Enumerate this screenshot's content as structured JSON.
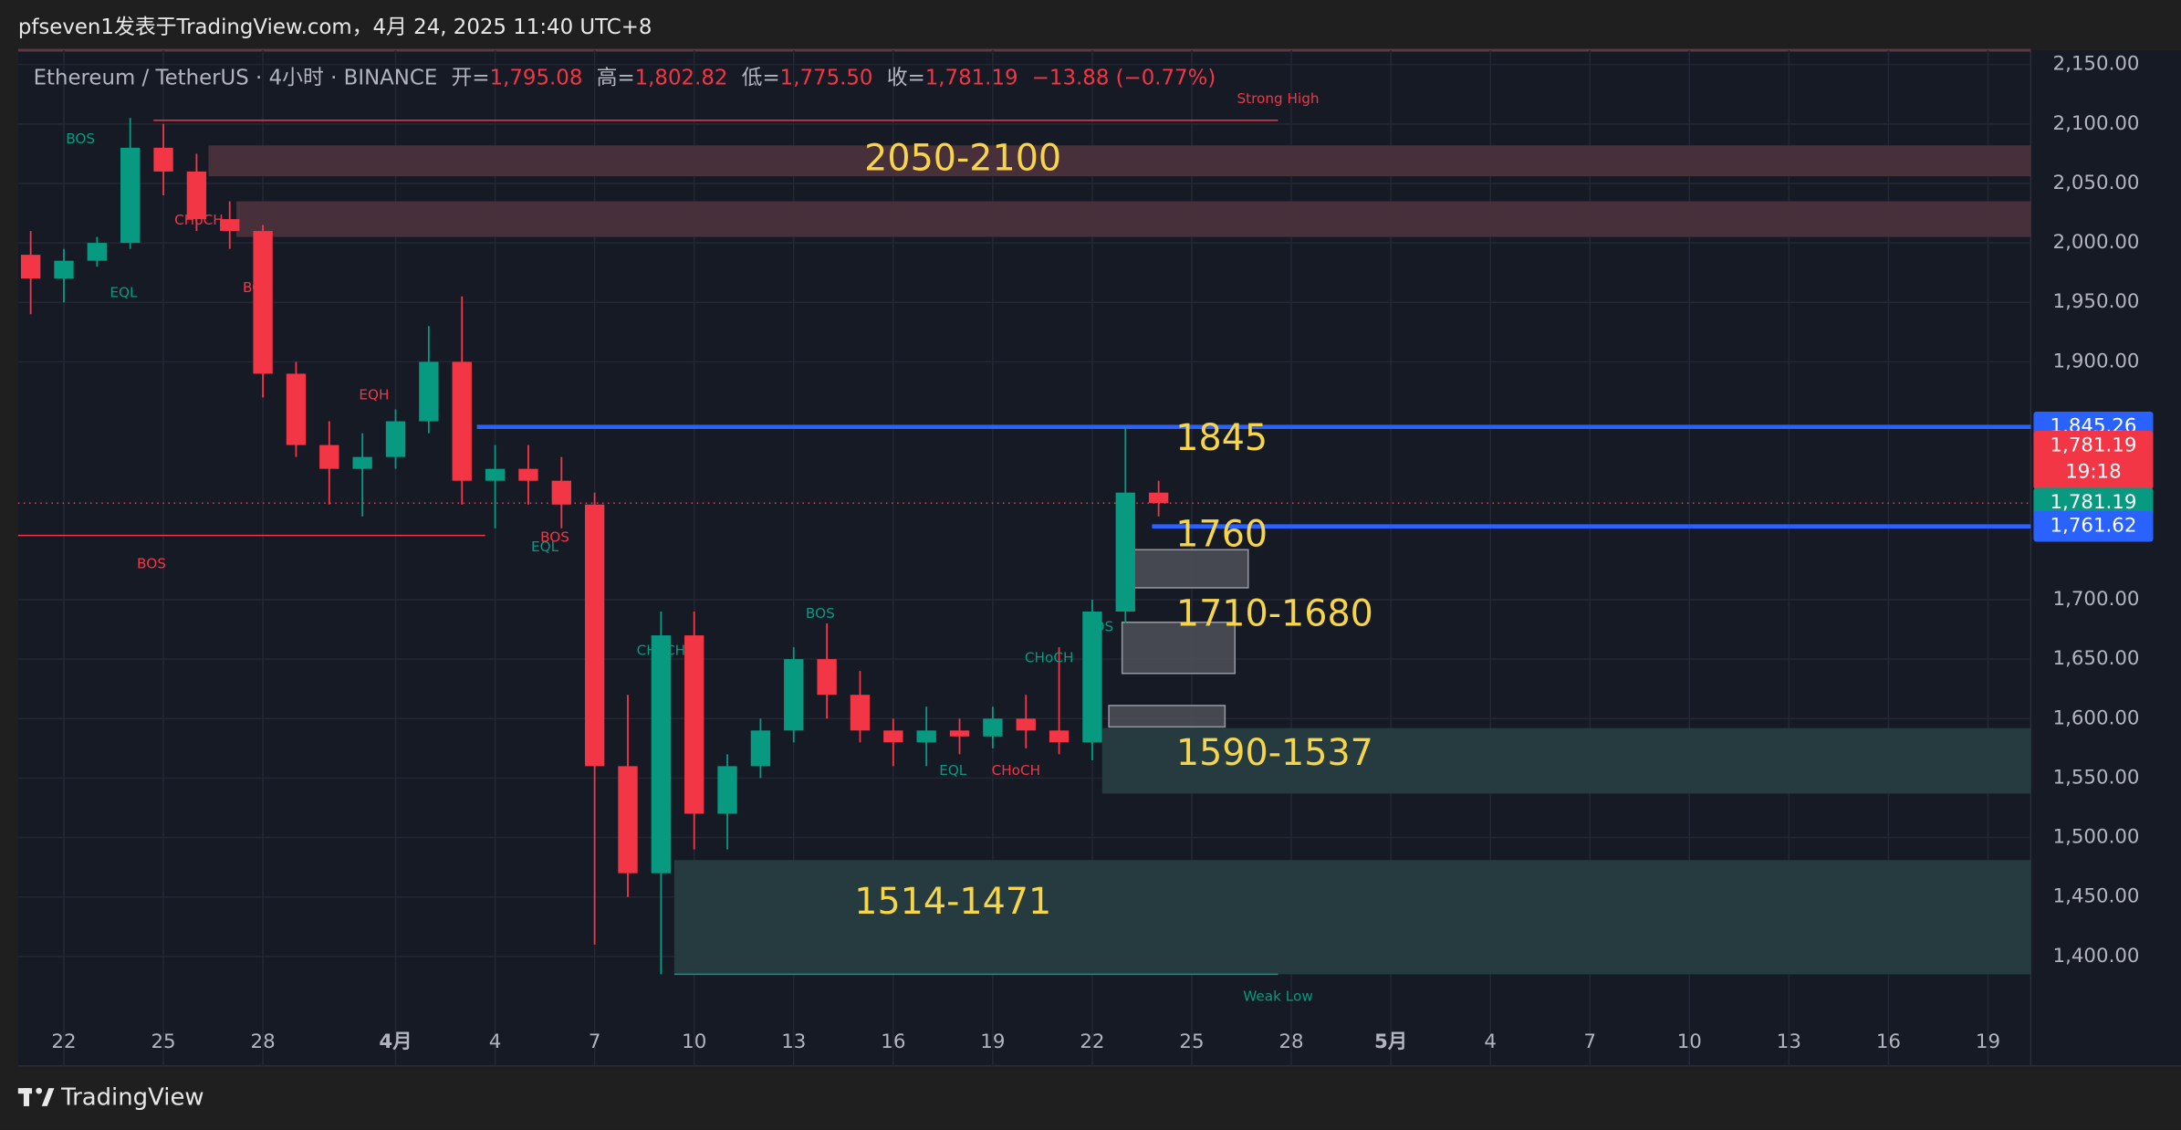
{
  "header": {
    "title": "pfseven1发表于TradingView.com，4月 24, 2025 11:40 UTC+8",
    "brand": "TradingView"
  },
  "chart_data": {
    "type": "candlestick",
    "legend": {
      "symbol": "Ethereum / TetherUS · 4小时 · BINANCE",
      "open_label": "开=",
      "open": "1,795.08",
      "high_label": "高=",
      "high": "1,802.82",
      "low_label": "低=",
      "low": "1,775.50",
      "close_label": "收=",
      "close": "1,781.19",
      "change": "−13.88 (−0.77%)"
    },
    "up_color": "#089981",
    "down_color": "#f23645",
    "x": [
      -1,
      0,
      1,
      2,
      3,
      4,
      5,
      6,
      7,
      8,
      9,
      10,
      11,
      12,
      13,
      14,
      15,
      16,
      17,
      18,
      19,
      20,
      21,
      22,
      23,
      24,
      25,
      26,
      27,
      28,
      29,
      30,
      31,
      32,
      33
    ],
    "open": [
      1990,
      1970,
      1985,
      2000,
      2080,
      2060,
      2020,
      2010,
      1890,
      1830,
      1810,
      1820,
      1850,
      1900,
      1800,
      1810,
      1800,
      1780,
      1560,
      1470,
      1670,
      1520,
      1560,
      1590,
      1650,
      1620,
      1590,
      1580,
      1590,
      1585,
      1600,
      1590,
      1580,
      1690,
      1790
    ],
    "high": [
      2010,
      1995,
      2005,
      2105,
      2100,
      2075,
      2035,
      2015,
      1900,
      1850,
      1840,
      1860,
      1930,
      1955,
      1830,
      1830,
      1820,
      1790,
      1620,
      1690,
      1690,
      1570,
      1600,
      1660,
      1680,
      1640,
      1600,
      1610,
      1600,
      1610,
      1620,
      1660,
      1700,
      1845,
      1800
    ],
    "low": [
      1940,
      1950,
      1980,
      1995,
      2040,
      2010,
      1995,
      1870,
      1820,
      1780,
      1770,
      1810,
      1840,
      1780,
      1760,
      1780,
      1760,
      1410,
      1450,
      1385,
      1490,
      1490,
      1550,
      1580,
      1600,
      1580,
      1560,
      1560,
      1570,
      1575,
      1575,
      1570,
      1565,
      1680,
      1770
    ],
    "close": [
      1970,
      1985,
      2000,
      2080,
      2060,
      2020,
      2010,
      1890,
      1830,
      1810,
      1820,
      1850,
      1900,
      1800,
      1810,
      1800,
      1780,
      1560,
      1470,
      1670,
      1520,
      1560,
      1590,
      1650,
      1620,
      1590,
      1580,
      1590,
      1585,
      1600,
      1590,
      1580,
      1690,
      1790,
      1781.19
    ],
    "xlim": [
      -1.38,
      59.29
    ],
    "xticks": [
      {
        "value": 0,
        "label": "22"
      },
      {
        "value": 3,
        "label": "25"
      },
      {
        "value": 6,
        "label": "28"
      },
      {
        "value": 10,
        "label": "4月"
      },
      {
        "value": 13,
        "label": "4"
      },
      {
        "value": 16,
        "label": "7"
      },
      {
        "value": 19,
        "label": "10"
      },
      {
        "value": 22,
        "label": "13"
      },
      {
        "value": 25,
        "label": "16"
      },
      {
        "value": 28,
        "label": "19"
      },
      {
        "value": 31,
        "label": "22"
      },
      {
        "value": 34,
        "label": "25"
      },
      {
        "value": 37,
        "label": "28"
      },
      {
        "value": 40,
        "label": "5月"
      },
      {
        "value": 43,
        "label": "4"
      },
      {
        "value": 46,
        "label": "7"
      },
      {
        "value": 49,
        "label": "10"
      },
      {
        "value": 52,
        "label": "13"
      },
      {
        "value": 55,
        "label": "16"
      },
      {
        "value": 58,
        "label": "19"
      }
    ],
    "ylim": [
      1308,
      2162
    ],
    "yticks": [
      {
        "value": 2150,
        "label": "2,150.00"
      },
      {
        "value": 2100,
        "label": "2,100.00"
      },
      {
        "value": 2050,
        "label": "2,050.00"
      },
      {
        "value": 2000,
        "label": "2,000.00"
      },
      {
        "value": 1950,
        "label": "1,950.00"
      },
      {
        "value": 1900,
        "label": "1,900.00"
      },
      {
        "value": 1700,
        "label": "1,700.00"
      },
      {
        "value": 1650,
        "label": "1,650.00"
      },
      {
        "value": 1600,
        "label": "1,600.00"
      },
      {
        "value": 1550,
        "label": "1,550.00"
      },
      {
        "value": 1500,
        "label": "1,500.00"
      },
      {
        "value": 1450,
        "label": "1,450.00"
      },
      {
        "value": 1400,
        "label": "1,400.00"
      }
    ],
    "grid": true,
    "zones": [
      {
        "x": 4.36,
        "x2": 59.29,
        "top": 2082,
        "bottom": 2056,
        "color": "#48303a"
      },
      {
        "x": 5.2,
        "x2": 59.29,
        "top": 2035,
        "bottom": 2005,
        "color": "#48303a"
      },
      {
        "x": 32.2,
        "x2": 35.7,
        "top": 1742,
        "bottom": 1710,
        "color": "#4a4d57"
      },
      {
        "x": 31.9,
        "x2": 35.3,
        "top": 1681,
        "bottom": 1638,
        "color": "#4a4d57"
      },
      {
        "x": 31.5,
        "x2": 35.0,
        "top": 1611,
        "bottom": 1593,
        "color": "#4a4d57"
      },
      {
        "x": 31.3,
        "x2": 59.29,
        "top": 1592,
        "bottom": 1537,
        "color": "#263b40"
      },
      {
        "x": 18.4,
        "x2": 59.29,
        "top": 1481,
        "bottom": 1385,
        "color": "#263b40"
      }
    ],
    "levels": [
      {
        "value": 1845.26,
        "x": 12.45,
        "x2": 59.29,
        "color": "#2962ff",
        "width": 3
      },
      {
        "value": 1761.62,
        "x": 32.8,
        "x2": 59.29,
        "color": "#2962ff",
        "width": 3
      },
      {
        "value": 1754,
        "x": -1.38,
        "x2": 12.7,
        "color": "#f23645",
        "width": 1
      },
      {
        "value": 2103,
        "x": 2.7,
        "x2": 36.6,
        "color": "#f23645",
        "width": 1
      },
      {
        "value": 1385,
        "x": 18.4,
        "x2": 36.6,
        "color": "#089981",
        "width": 1
      },
      {
        "value": 1781.19,
        "x": -1.38,
        "x2": 59.29,
        "color": "#f23645",
        "width": 1,
        "dash": true
      }
    ],
    "price_tags": [
      {
        "value": 1845.26,
        "label": "1,845.26",
        "color": "#2962ff"
      },
      {
        "value": 1781.19,
        "label": "1,781.19",
        "sub": "19:18",
        "color": "#f23645",
        "offset": -1
      },
      {
        "value": 1781.19,
        "label": "1,781.19",
        "color": "#089981"
      },
      {
        "value": 1761.62,
        "label": "1,761.62",
        "color": "#2962ff"
      }
    ],
    "labels": [
      {
        "text": "2050-2100",
        "x": 27.1,
        "y": 2069
      },
      {
        "text": "1845",
        "x": 34.9,
        "y": 1834
      },
      {
        "text": "1760",
        "x": 34.9,
        "y": 1753
      },
      {
        "text": "1710-1680",
        "x": 36.5,
        "y": 1686
      },
      {
        "text": "1590-1537",
        "x": 36.5,
        "y": 1569
      },
      {
        "text": "1514-1471",
        "x": 26.8,
        "y": 1444
      }
    ],
    "label_color": "#f7d54a",
    "annotations": [
      {
        "text": "BOS",
        "x": 0.5,
        "y": 2087,
        "color": "#089981"
      },
      {
        "text": "CHoCH",
        "x": 4.07,
        "y": 2019,
        "color": "#f23645"
      },
      {
        "text": "EQL",
        "x": 1.8,
        "y": 1958,
        "color": "#089981"
      },
      {
        "text": "BOS",
        "x": 5.83,
        "y": 1962,
        "color": "#f23645"
      },
      {
        "text": "EQH",
        "x": 9.35,
        "y": 1872,
        "color": "#f23645"
      },
      {
        "text": "BOS",
        "x": 2.64,
        "y": 1730,
        "color": "#f23645"
      },
      {
        "text": "EQL",
        "x": 14.5,
        "y": 1744,
        "color": "#089981"
      },
      {
        "text": "BOS",
        "x": 14.8,
        "y": 1752,
        "color": "#f23645"
      },
      {
        "text": "CHoCH",
        "x": 18.0,
        "y": 1657,
        "color": "#089981"
      },
      {
        "text": "BOS",
        "x": 22.8,
        "y": 1688,
        "color": "#089981"
      },
      {
        "text": "EQL",
        "x": 26.8,
        "y": 1556,
        "color": "#089981"
      },
      {
        "text": "CHoCH",
        "x": 28.7,
        "y": 1556,
        "color": "#f23645"
      },
      {
        "text": "CHoCH",
        "x": 29.7,
        "y": 1651,
        "color": "#089981"
      },
      {
        "text": "BOS",
        "x": 31.2,
        "y": 1677,
        "color": "#089981"
      },
      {
        "text": "Strong High",
        "x": 36.6,
        "y": 2121,
        "color": "#f23645"
      },
      {
        "text": "Weak Low",
        "x": 36.6,
        "y": 1366,
        "color": "#089981"
      }
    ]
  }
}
